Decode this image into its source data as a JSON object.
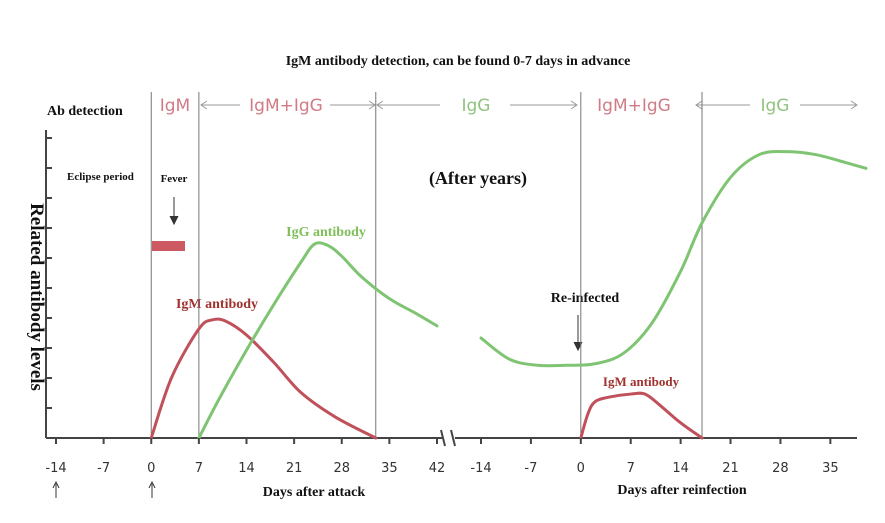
{
  "chart_data": {
    "type": "line",
    "title": "IgM antibody detection, can be found 0-7 days in advance",
    "ylabel": "Related antibody levels",
    "detection_row": {
      "label": "Ab detection",
      "segments": [
        "IgM",
        "IgM+IgG",
        "IgG",
        "IgM+IgG",
        "IgG"
      ]
    },
    "colors": {
      "igm": "#c0505a",
      "igg": "#7fc472",
      "axis": "#444444",
      "vline": "#777777"
    },
    "panel1": {
      "xlabel": "Days after attack",
      "ticks": [
        -14,
        -7,
        0,
        7,
        14,
        21,
        28,
        35,
        42
      ],
      "xlim": [
        -14,
        42
      ],
      "event_lines": [
        0,
        7,
        33
      ],
      "series": [
        {
          "name": "IgM antibody",
          "color_key": "igm",
          "x": [
            0,
            3,
            7,
            9,
            11,
            14,
            18,
            22,
            27,
            33
          ],
          "y": [
            0,
            2.0,
            3.6,
            3.9,
            3.85,
            3.4,
            2.5,
            1.5,
            0.7,
            0
          ]
        },
        {
          "name": "IgG antibody",
          "color_key": "igg",
          "x": [
            7,
            10,
            14,
            18,
            22,
            24,
            26,
            28,
            31,
            35,
            39,
            42
          ],
          "y": [
            0,
            1.3,
            2.9,
            4.4,
            5.8,
            6.4,
            6.35,
            6.0,
            5.3,
            4.6,
            4.1,
            3.7
          ]
        }
      ]
    },
    "panel2": {
      "xlabel": "Days after reinfection",
      "ticks": [
        -14,
        -7,
        0,
        7,
        14,
        21,
        28,
        35
      ],
      "xlim": [
        -14,
        40
      ],
      "event_lines": [
        0,
        17
      ],
      "series": [
        {
          "name": "IgM antibody",
          "color_key": "igm",
          "x": [
            0,
            1,
            2,
            4,
            7,
            9,
            11,
            14,
            17
          ],
          "y": [
            0,
            0.8,
            1.2,
            1.35,
            1.45,
            1.45,
            1.1,
            0.5,
            0
          ]
        },
        {
          "name": "IgG antibody",
          "color_key": "igg",
          "x": [
            -14,
            -10,
            -6,
            -2,
            2,
            6,
            10,
            14,
            17,
            21,
            25,
            29,
            33,
            37,
            40
          ],
          "y": [
            3.3,
            2.6,
            2.4,
            2.4,
            2.45,
            2.8,
            3.8,
            5.5,
            7.1,
            8.6,
            9.35,
            9.45,
            9.35,
            9.1,
            8.9
          ]
        }
      ]
    },
    "annotations": {
      "eclipse": "Eclipse period",
      "fever": "Fever",
      "after_years": "(After years)",
      "reinfected": "Re-infected",
      "igg_antibody": "IgG antibody",
      "igm_antibody_1": "IgM antibody",
      "igm_antibody_2": "IgM antibody"
    }
  }
}
